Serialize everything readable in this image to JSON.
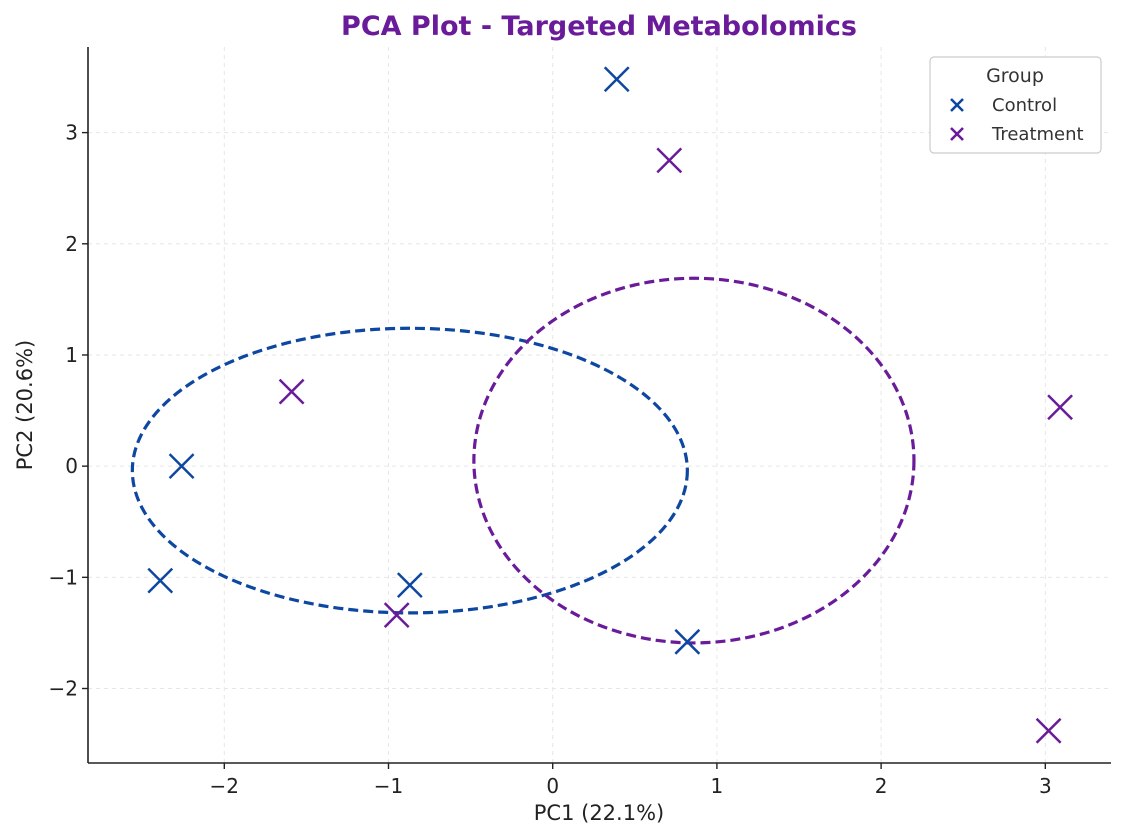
{
  "chart_data": {
    "type": "scatter",
    "title": "PCA Plot - Targeted Metabolomics",
    "xlabel": "PC1 (22.1%)",
    "ylabel": "PC2 (20.6%)",
    "xlim": [
      -2.83,
      3.4
    ],
    "ylim": [
      -2.67,
      3.77
    ],
    "xticks": [
      -2,
      -1,
      0,
      1,
      2,
      3
    ],
    "yticks": [
      -2,
      -1,
      0,
      1,
      2,
      3
    ],
    "xtick_labels": [
      "−2",
      "−1",
      "0",
      "1",
      "2",
      "3"
    ],
    "ytick_labels": [
      "−2",
      "−1",
      "0",
      "1",
      "2",
      "3"
    ],
    "grid": true,
    "legend": {
      "title": "Group",
      "placement": "top-right"
    },
    "marker": "x",
    "series": [
      {
        "name": "Control",
        "color": "#0d47a1",
        "points": [
          {
            "x": 0.39,
            "y": 3.48
          },
          {
            "x": -2.26,
            "y": 0.0
          },
          {
            "x": -2.39,
            "y": -1.03
          },
          {
            "x": -0.87,
            "y": -1.07
          },
          {
            "x": 0.82,
            "y": -1.58
          }
        ],
        "ellipse": {
          "cx": -0.87,
          "cy": -0.04,
          "rx": 1.69,
          "ry": 1.28
        }
      },
      {
        "name": "Treatment",
        "color": "#6a1b9a",
        "points": [
          {
            "x": 0.71,
            "y": 2.75
          },
          {
            "x": -1.59,
            "y": 0.67
          },
          {
            "x": -0.95,
            "y": -1.34
          },
          {
            "x": 3.09,
            "y": 0.53
          },
          {
            "x": 3.02,
            "y": -2.38
          }
        ],
        "ellipse": {
          "cx": 0.86,
          "cy": 0.05,
          "rx": 1.34,
          "ry": 1.64
        }
      }
    ]
  },
  "colors": {
    "title": "#6a1b9a",
    "grid": "#e6e6e6",
    "axis": "#222222"
  }
}
